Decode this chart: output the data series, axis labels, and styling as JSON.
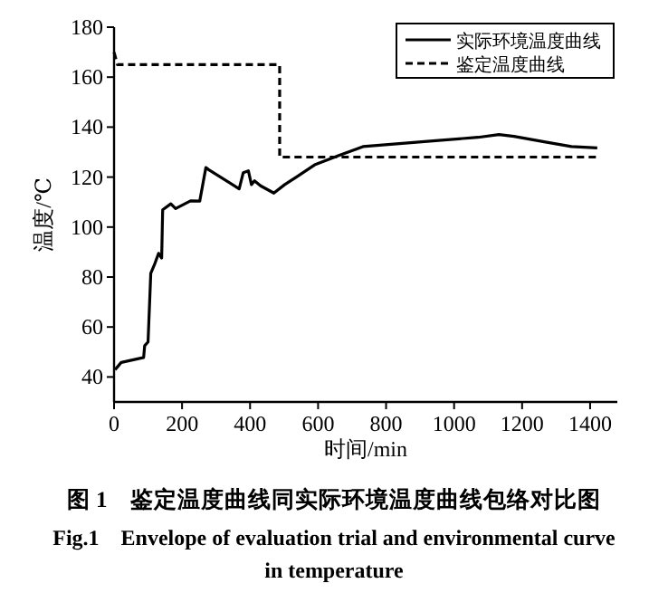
{
  "chart_data": {
    "type": "line",
    "title": "图 1　鉴定温度曲线同实际环境温度曲线包络对比图",
    "subtitle": "Fig.1　Envelope of evaluation trial and environmental curve in temperature",
    "xlabel": "时间/min",
    "ylabel": "温度/℃",
    "xlim": [
      0,
      1480
    ],
    "ylim": [
      30,
      180
    ],
    "xticks": [
      0,
      200,
      400,
      600,
      800,
      1000,
      1200,
      1400
    ],
    "yticks": [
      40,
      60,
      80,
      100,
      120,
      140,
      160,
      180
    ],
    "legend": "top right",
    "grid": false,
    "series": [
      {
        "name": "实际环境温度曲线",
        "color": "#000000",
        "line_style": "solid",
        "x": [
          3,
          21,
          87,
          90,
          100,
          108,
          119,
          131,
          140,
          143,
          167,
          181,
          225,
          252,
          270,
          279,
          368,
          380,
          395,
          404,
          413,
          431,
          470,
          502,
          537,
          590,
          661,
          732,
          839,
          946,
          1070,
          1132,
          1176,
          1265,
          1345,
          1421
        ],
        "values": [
          42.9,
          45.8,
          47.8,
          52.5,
          54,
          81.5,
          85,
          89.5,
          87.6,
          106.9,
          109.3,
          107.4,
          110.5,
          110.4,
          123.8,
          122.9,
          115.3,
          121.8,
          122.5,
          117,
          118.5,
          116.5,
          113.6,
          117,
          120.1,
          124.9,
          128.6,
          132.2,
          133.4,
          134.6,
          135.9,
          137,
          136.3,
          134.1,
          132.2,
          131.7
        ]
      },
      {
        "name": "鉴定温度曲线",
        "color": "#000000",
        "line_style": "dashed",
        "x": [
          0,
          10,
          487,
          487,
          1420
        ],
        "values": [
          170,
          165,
          165,
          128,
          128
        ]
      }
    ]
  }
}
